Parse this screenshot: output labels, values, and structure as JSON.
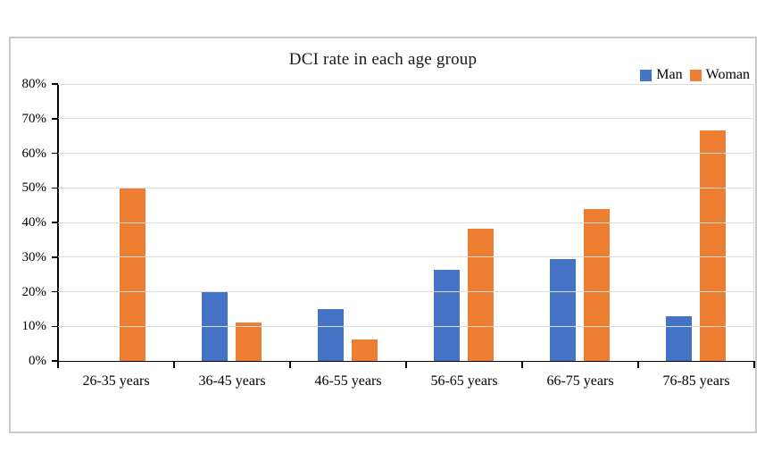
{
  "chart": {
    "title": "DCI rate in each age group"
  },
  "chart_data": {
    "type": "bar",
    "title": "DCI rate in each age group",
    "categories": [
      "26-35 years",
      "36-45 years",
      "46-55 years",
      "56-65 years",
      "66-75 years",
      "76-85 years"
    ],
    "series": [
      {
        "name": "Man",
        "color": "#4472C4",
        "values": [
          0,
          20,
          15,
          26.3,
          29.4,
          13
        ]
      },
      {
        "name": "Woman",
        "color": "#ED7D31",
        "values": [
          50,
          11.1,
          6.3,
          38.2,
          44,
          66.7
        ]
      }
    ],
    "xlabel": "",
    "ylabel": "",
    "ylim": [
      0,
      80
    ],
    "y_ticks": [
      0,
      10,
      20,
      30,
      40,
      50,
      60,
      70,
      80
    ],
    "y_tick_labels": [
      "0%",
      "10%",
      "20%",
      "30%",
      "40%",
      "50%",
      "60%",
      "70%",
      "80%"
    ],
    "grid": "horizontal",
    "legend_position": "top-right",
    "colors": {
      "man": "#4472C4",
      "woman": "#ED7D31",
      "gridline": "#dcdcdc",
      "axis": "#000000",
      "frame_border": "#c9c9c9",
      "background": "#ffffff"
    }
  }
}
